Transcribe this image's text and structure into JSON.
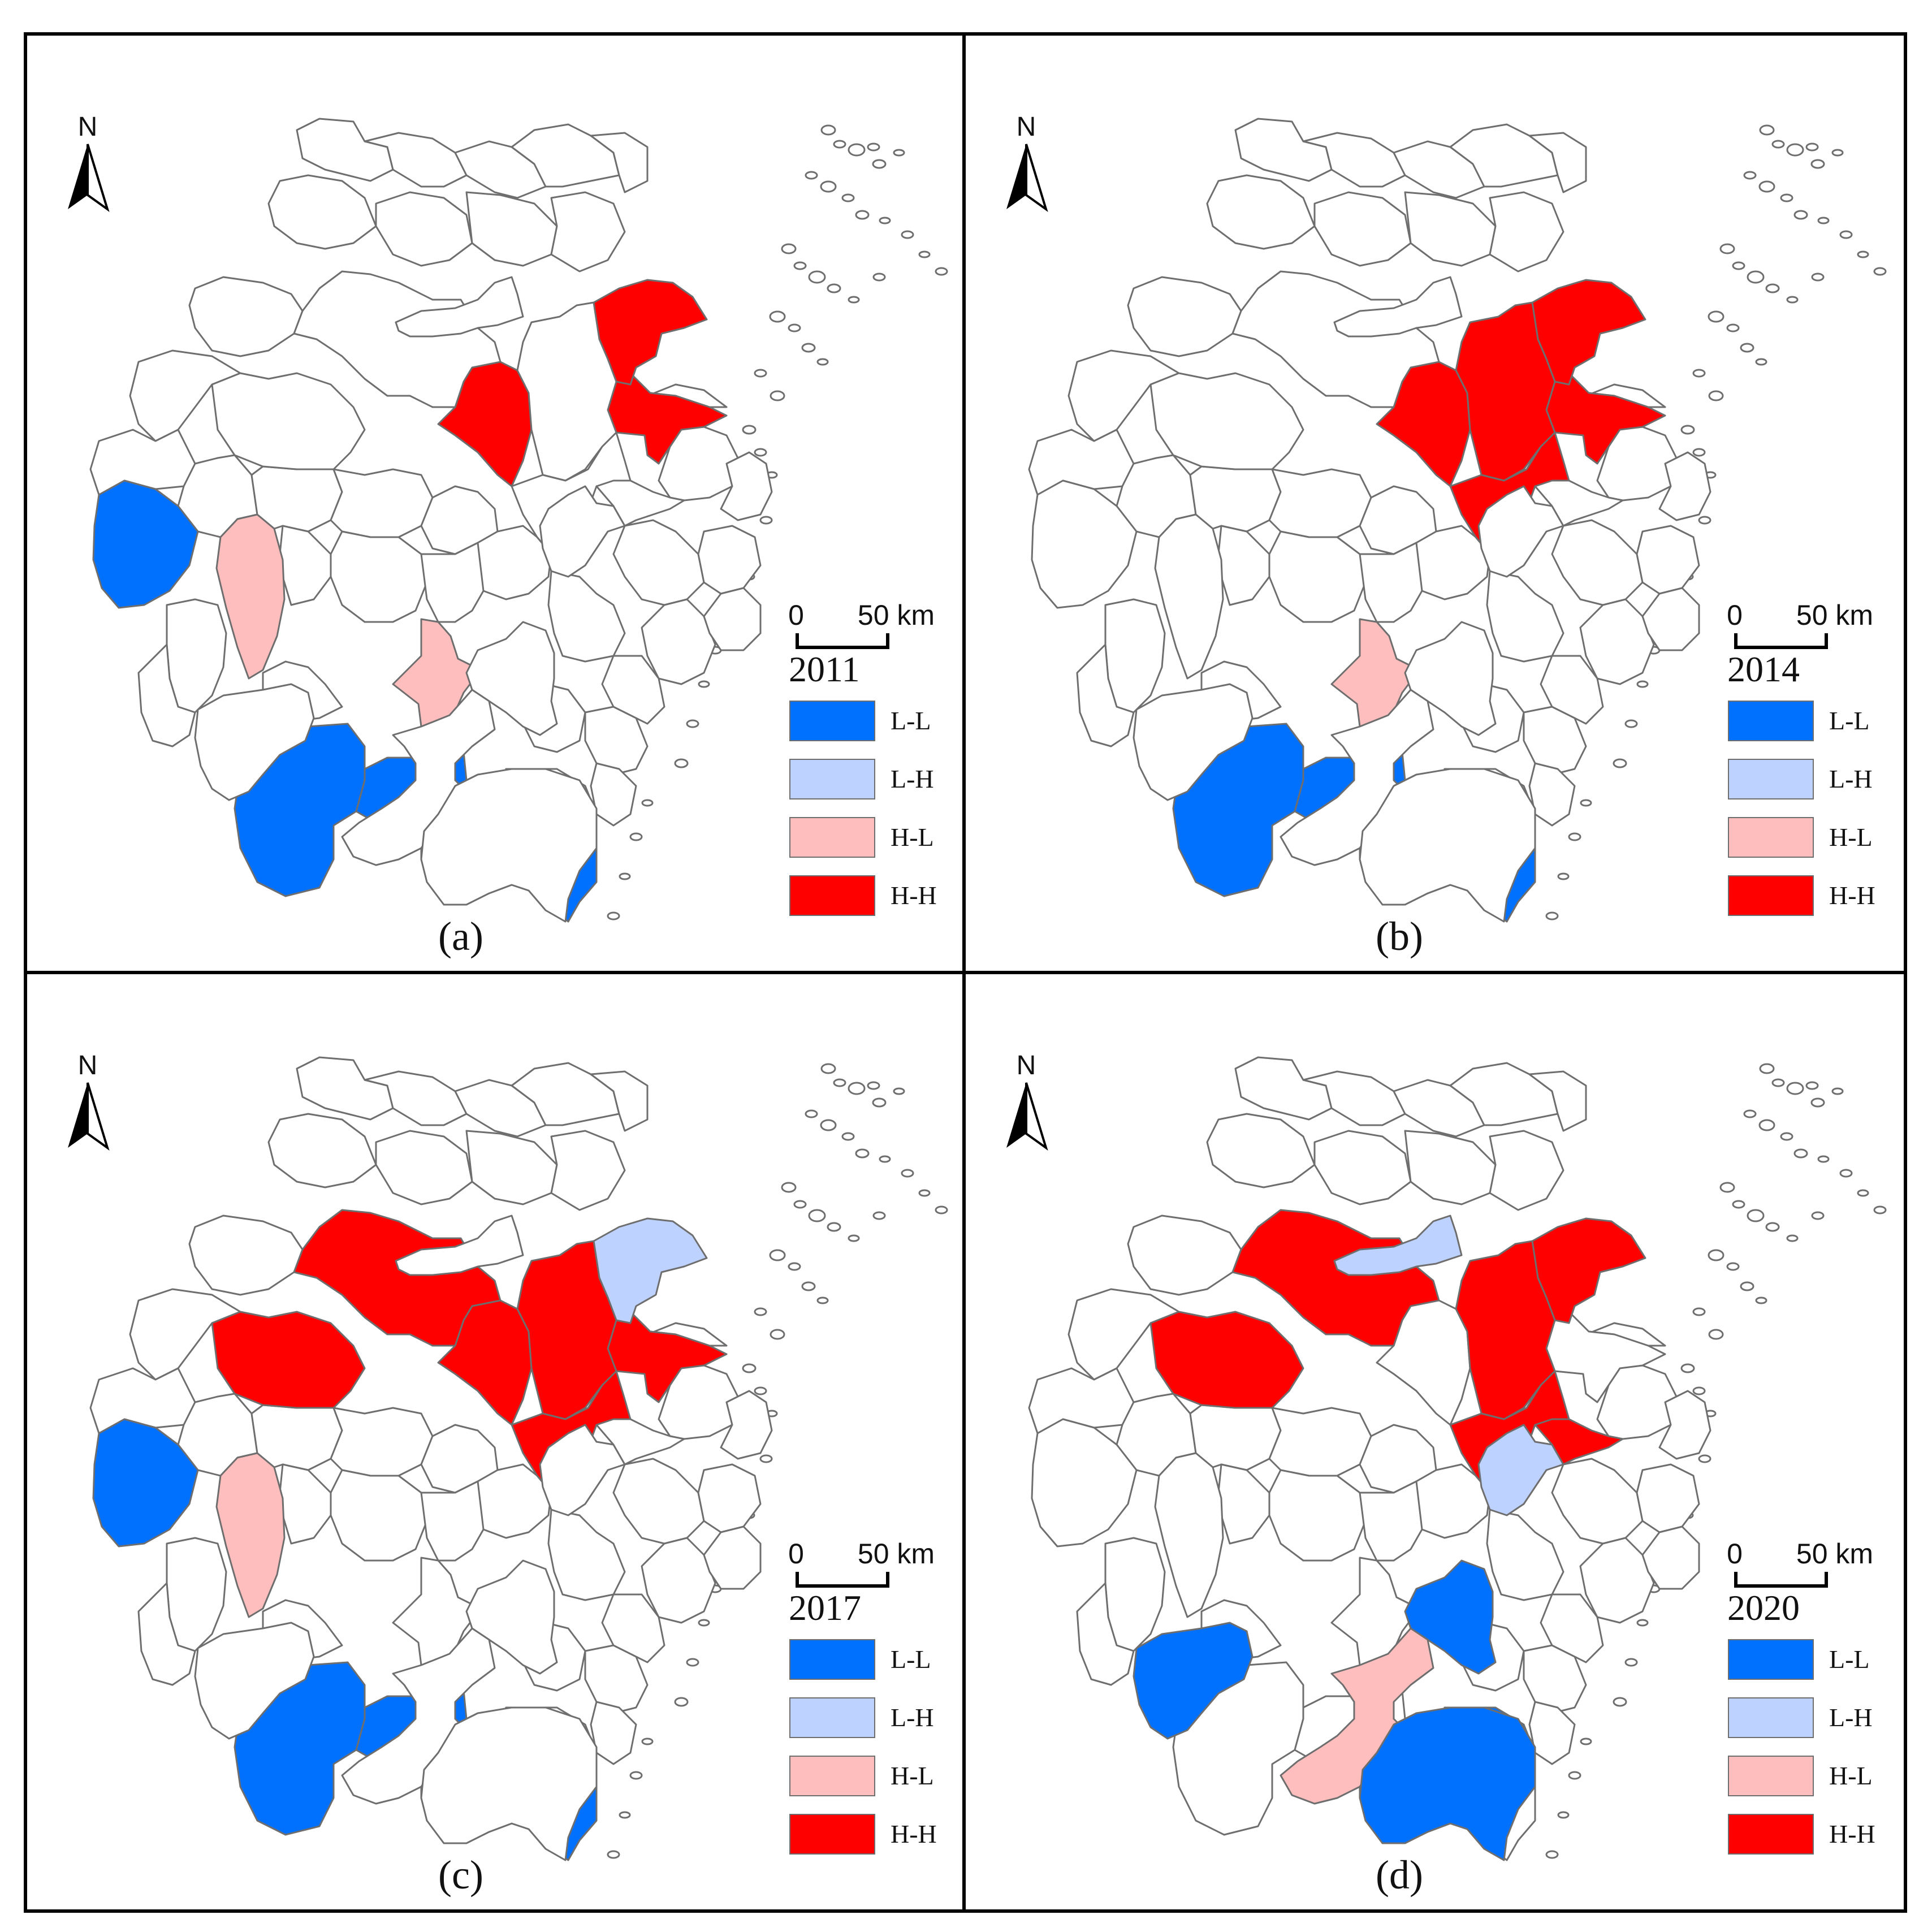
{
  "colors": {
    "L-L": "#0070ff",
    "L-H": "#bed2ff",
    "H-L": "#ffbebe",
    "H-H": "#ff0000",
    "none": "#ffffff",
    "boundary": "#6e6e6e"
  },
  "north_arrow": {
    "letter": "N",
    "icon": "north-arrow-icon"
  },
  "scale_bar": {
    "start": "0",
    "end": "50 km"
  },
  "legend": [
    {
      "key": "L-L",
      "label": "L-L"
    },
    {
      "key": "L-H",
      "label": "L-H"
    },
    {
      "key": "H-L",
      "label": "H-L"
    },
    {
      "key": "H-H",
      "label": "H-H"
    }
  ],
  "panels": [
    {
      "label": "(a)",
      "year": "2011",
      "regions": {
        "nw_west": "L-L",
        "w_strip": "H-L",
        "c_small": "H-L",
        "s_west": "L-L",
        "s_mid": "L-L",
        "s_east": "L-L",
        "n_center": "H-H",
        "n_east": "H-H",
        "ne_coast": "H-H"
      }
    },
    {
      "label": "(b)",
      "year": "2014",
      "regions": {
        "c_small": "H-L",
        "s_west": "L-L",
        "s_mid": "L-L",
        "s_east": "L-L",
        "n_center": "H-H",
        "n_east": "H-H",
        "ne_coast": "H-H",
        "n_mid": "H-H",
        "n_inner": "H-H"
      }
    },
    {
      "label": "(c)",
      "year": "2017",
      "regions": {
        "nw_west": "L-L",
        "w_strip": "H-L",
        "s_west": "L-L",
        "s_mid": "L-L",
        "s_east": "L-L",
        "n_west": "H-H",
        "n_nw": "H-H",
        "n_mid": "H-H",
        "n_center": "H-H",
        "n_inner": "H-H",
        "n_east": "H-H",
        "ne_coast": "L-H"
      }
    },
    {
      "label": "(d)",
      "year": "2020",
      "regions": {
        "w_blob": "L-L",
        "c_north_blue": "L-L",
        "se_blue": "L-L",
        "s_east2": "L-L",
        "c_pink_strip": "H-L",
        "n_west": "H-H",
        "n_nw": "H-H",
        "n_mid": "H-H",
        "n_inner": "H-H",
        "ne_coast": "H-H",
        "n_east_small": "H-H",
        "n_top_blue": "L-H",
        "c_east_blue": "L-H"
      }
    }
  ]
}
